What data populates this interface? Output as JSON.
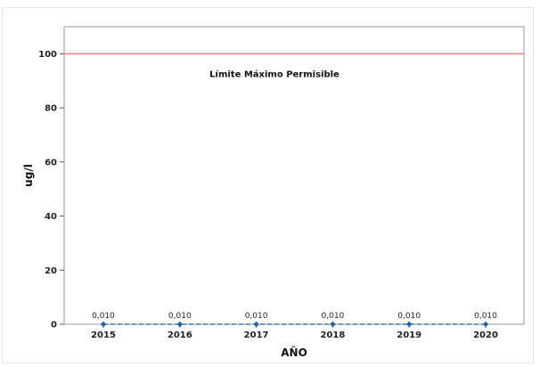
{
  "chart_data": {
    "type": "line",
    "title": "",
    "xlabel": "AÑO",
    "ylabel": "ug/l",
    "categories": [
      "2015",
      "2016",
      "2017",
      "2018",
      "2019",
      "2020"
    ],
    "series": [
      {
        "values": [
          0.01,
          0.01,
          0.01,
          0.01,
          0.01,
          0.01
        ],
        "data_labels": [
          "0,010",
          "0,010",
          "0,010",
          "0,010",
          "0,010",
          "0,010"
        ],
        "color": "#1f5fa8",
        "line_style": "dashed"
      }
    ],
    "reference_line": {
      "value": 100,
      "label": "Límite Máximo Permisible",
      "color": "#f08080"
    },
    "ylim": [
      0,
      110
    ],
    "yticks": [
      "0",
      "20",
      "40",
      "60",
      "80",
      "100"
    ],
    "grid": false
  }
}
